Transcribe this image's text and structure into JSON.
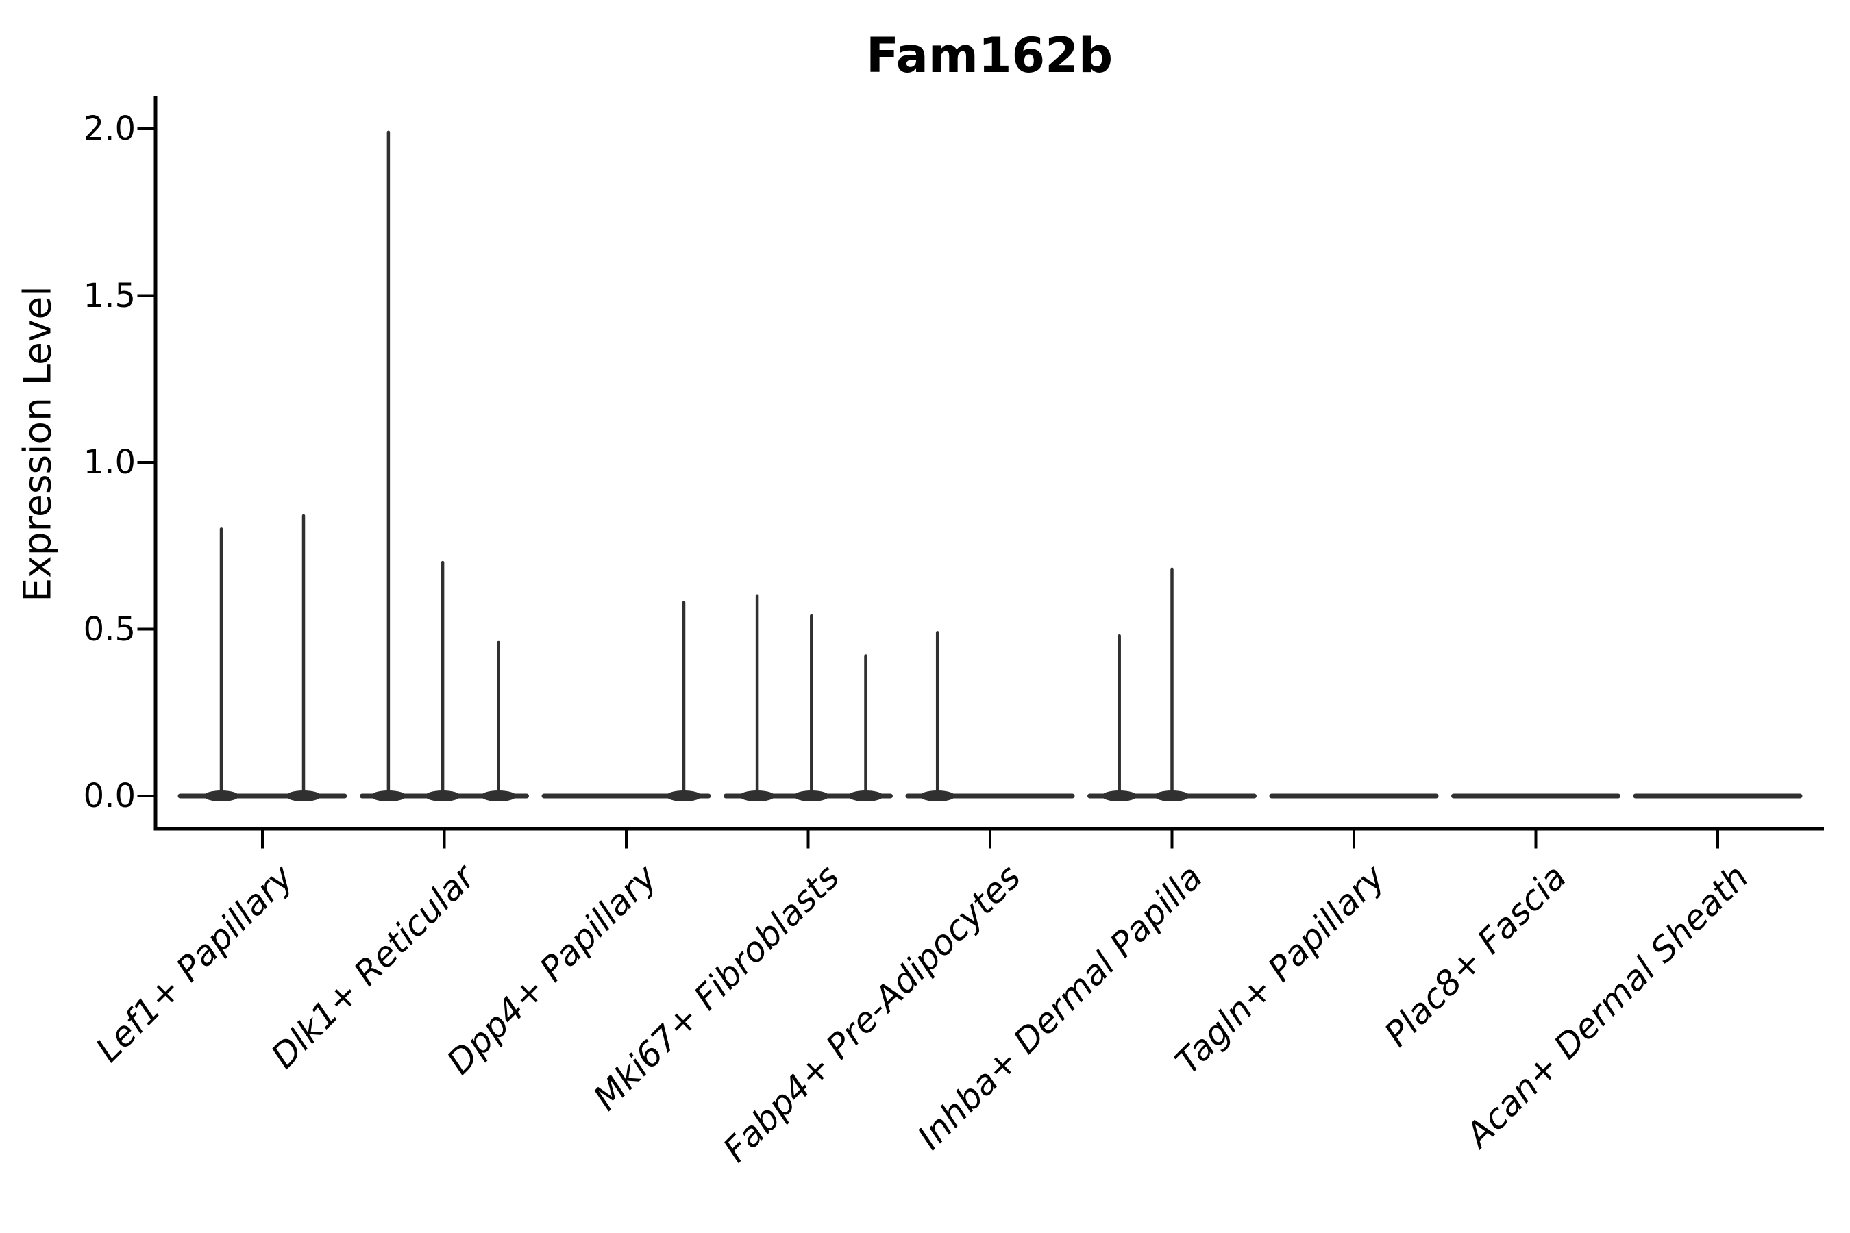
{
  "figure": {
    "title": "Fam162b"
  },
  "y_axis": {
    "label": "Expression Level",
    "tick_labels": [
      "2.0",
      "1.5",
      "1.0",
      "0.5",
      "0.0"
    ]
  },
  "x_axis": {
    "tick_labels": [
      "Lef1+ Papillary",
      "Dlk1+ Reticular",
      "Dpp4+ Papillary",
      "Mki67+ Fibroblasts",
      "Fabp4+ Pre-Adipocytes",
      "Inhba+ Dermal Papilla",
      "Tagln+ Papillary",
      "Plac8+ Fascia",
      "Acan+ Dermal Sheath"
    ]
  },
  "chart_data": {
    "type": "violin",
    "title": "Fam162b",
    "xlabel": "",
    "ylabel": "Expression Level",
    "ylim": [
      0,
      2.05
    ],
    "yticks": [
      2.0,
      1.5,
      1.0,
      0.5,
      0.0
    ],
    "grid": false,
    "legend": null,
    "description": "Single-gene violin plot; expression is 0 for most cells in every cluster (flat baseline violins) with thin density spikes where a few cells express the gene.",
    "categories": [
      "Lef1+ Papillary",
      "Dlk1+ Reticular",
      "Dpp4+ Papillary",
      "Mki67+ Fibroblasts",
      "Fabp4+ Pre-Adipocytes",
      "Inhba+ Dermal Papilla",
      "Tagln+ Papillary",
      "Plac8+ Fascia",
      "Acan+ Dermal Sheath"
    ],
    "series": [
      {
        "category": "Lef1+ Papillary",
        "baseline_value": 0,
        "spikes": [
          {
            "pos": 0.25,
            "value": 0.8
          },
          {
            "pos": 0.75,
            "value": 0.84
          }
        ]
      },
      {
        "category": "Dlk1+ Reticular",
        "baseline_value": 0,
        "spikes": [
          {
            "pos": 0.16,
            "value": 1.99
          },
          {
            "pos": 0.49,
            "value": 0.7
          },
          {
            "pos": 0.83,
            "value": 0.46
          }
        ]
      },
      {
        "category": "Dpp4+ Papillary",
        "baseline_value": 0,
        "spikes": [
          {
            "pos": 0.85,
            "value": 0.58
          }
        ]
      },
      {
        "category": "Mki67+ Fibroblasts",
        "baseline_value": 0,
        "spikes": [
          {
            "pos": 0.19,
            "value": 0.6
          },
          {
            "pos": 0.52,
            "value": 0.54
          },
          {
            "pos": 0.85,
            "value": 0.42
          }
        ]
      },
      {
        "category": "Fabp4+ Pre-Adipocytes",
        "baseline_value": 0,
        "spikes": [
          {
            "pos": 0.18,
            "value": 0.49
          }
        ]
      },
      {
        "category": "Inhba+ Dermal Papilla",
        "baseline_value": 0,
        "spikes": [
          {
            "pos": 0.18,
            "value": 0.48
          },
          {
            "pos": 0.5,
            "value": 0.68
          }
        ]
      },
      {
        "category": "Tagln+ Papillary",
        "baseline_value": 0,
        "spikes": []
      },
      {
        "category": "Plac8+ Fascia",
        "baseline_value": 0,
        "spikes": []
      },
      {
        "category": "Acan+ Dermal Sheath",
        "baseline_value": 0,
        "spikes": []
      }
    ],
    "colors": {
      "violin": "#303030",
      "axis": "#000000",
      "background": "#ffffff"
    }
  }
}
